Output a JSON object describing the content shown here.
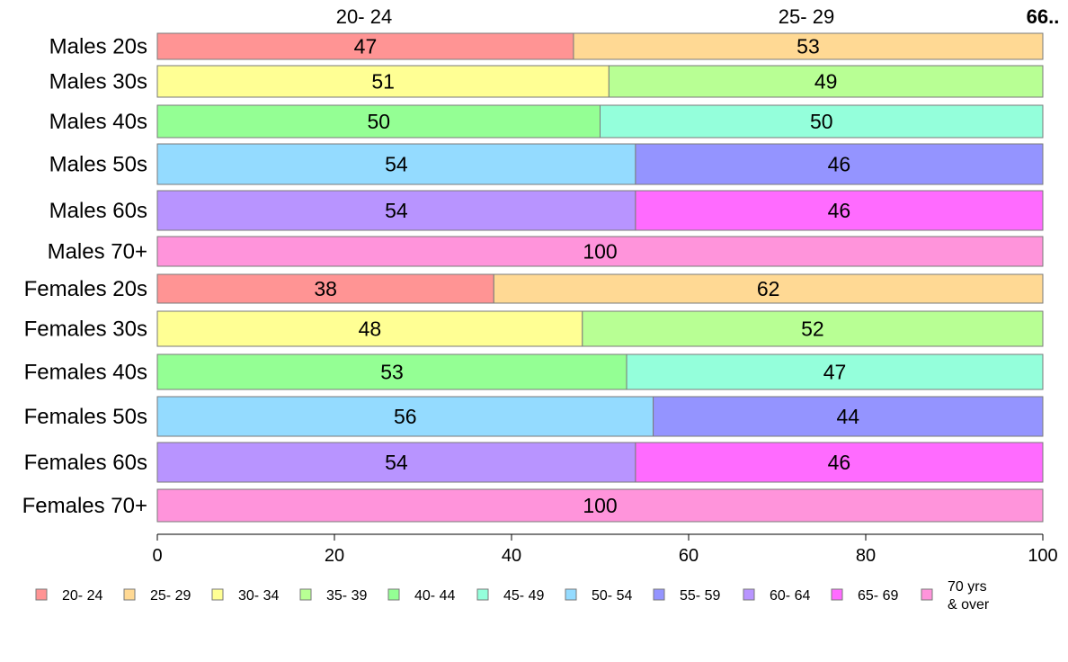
{
  "chart_data": {
    "type": "bar",
    "orientation": "horizontal",
    "stacked": true,
    "categories": [
      "Males 20s",
      "Males 30s",
      "Males 40s",
      "Males 50s",
      "Males 60s",
      "Males 70+",
      "Females 20s",
      "Females 30s",
      "Females 40s",
      "Females 50s",
      "Females 60s",
      "Females 70+"
    ],
    "legend": [
      {
        "label": "20- 24",
        "color": "#ff9494"
      },
      {
        "label": "25- 29",
        "color": "#ffd994"
      },
      {
        "label": "30- 34",
        "color": "#ffff94"
      },
      {
        "label": "35- 39",
        "color": "#b8ff94"
      },
      {
        "label": "40- 44",
        "color": "#94ff94"
      },
      {
        "label": "45- 49",
        "color": "#94ffdb"
      },
      {
        "label": "50- 54",
        "color": "#94dbff"
      },
      {
        "label": "55- 59",
        "color": "#9494ff"
      },
      {
        "label": "60- 64",
        "color": "#b894ff"
      },
      {
        "label": "65- 69",
        "color": "#ff6bff"
      },
      {
        "label": "70 yrs\n& over",
        "color": "#ff94db"
      }
    ],
    "bars": [
      {
        "category": "Males 20s",
        "segments": [
          {
            "group": 0,
            "value": 47
          },
          {
            "group": 1,
            "value": 53
          }
        ]
      },
      {
        "category": "Males 30s",
        "segments": [
          {
            "group": 2,
            "value": 51
          },
          {
            "group": 3,
            "value": 49
          }
        ]
      },
      {
        "category": "Males 40s",
        "segments": [
          {
            "group": 4,
            "value": 50
          },
          {
            "group": 5,
            "value": 50
          }
        ]
      },
      {
        "category": "Males 50s",
        "segments": [
          {
            "group": 6,
            "value": 54
          },
          {
            "group": 7,
            "value": 46
          }
        ]
      },
      {
        "category": "Males 60s",
        "segments": [
          {
            "group": 8,
            "value": 54
          },
          {
            "group": 9,
            "value": 46
          }
        ]
      },
      {
        "category": "Males 70+",
        "segments": [
          {
            "group": 10,
            "value": 100
          }
        ]
      },
      {
        "category": "Females 20s",
        "segments": [
          {
            "group": 0,
            "value": 38
          },
          {
            "group": 1,
            "value": 62
          }
        ]
      },
      {
        "category": "Females 30s",
        "segments": [
          {
            "group": 2,
            "value": 48
          },
          {
            "group": 3,
            "value": 52
          }
        ]
      },
      {
        "category": "Females 40s",
        "segments": [
          {
            "group": 4,
            "value": 53
          },
          {
            "group": 5,
            "value": 47
          }
        ]
      },
      {
        "category": "Females 50s",
        "segments": [
          {
            "group": 6,
            "value": 56
          },
          {
            "group": 7,
            "value": 44
          }
        ]
      },
      {
        "category": "Females 60s",
        "segments": [
          {
            "group": 8,
            "value": 54
          },
          {
            "group": 9,
            "value": 46
          }
        ]
      },
      {
        "category": "Females 70+",
        "segments": [
          {
            "group": 10,
            "value": 100
          }
        ]
      }
    ],
    "top_labels": [
      "20- 24",
      "25- 29"
    ],
    "top_right_label": "66..",
    "xlim": [
      0,
      100
    ],
    "xticks": [
      0,
      20,
      40,
      60,
      80,
      100
    ],
    "grid": false,
    "legend_position": "bottom"
  }
}
